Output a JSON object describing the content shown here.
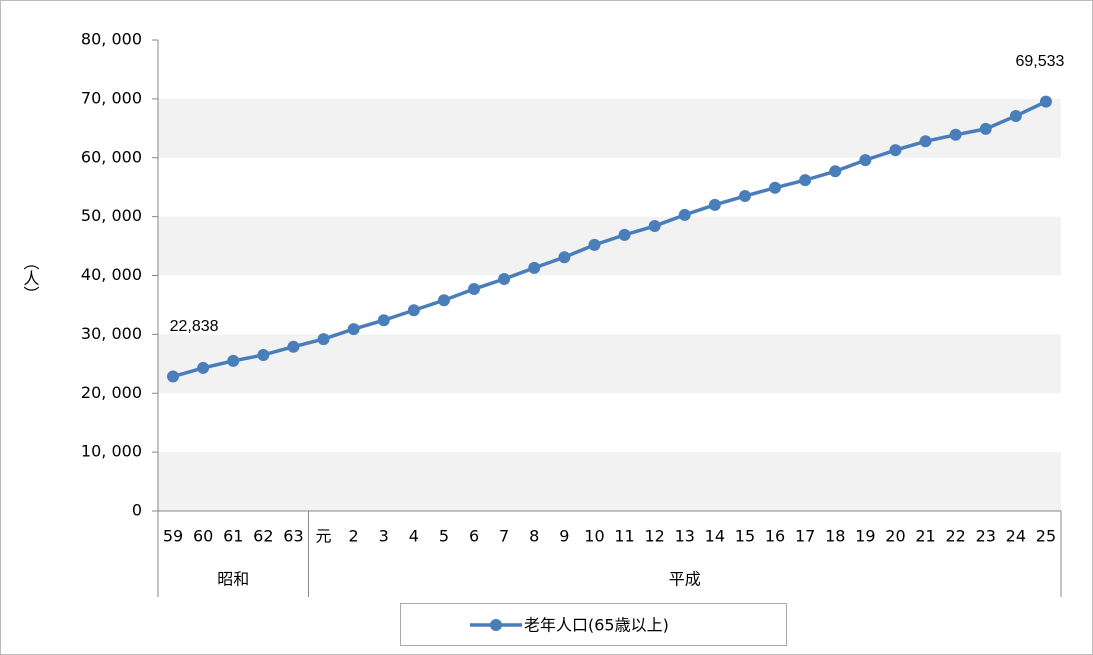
{
  "chart_data": {
    "type": "line",
    "y_label": "（人）",
    "categories": [
      "59",
      "60",
      "61",
      "62",
      "63",
      "元",
      "2",
      "3",
      "4",
      "5",
      "6",
      "7",
      "8",
      "9",
      "10",
      "11",
      "12",
      "13",
      "14",
      "15",
      "16",
      "17",
      "18",
      "19",
      "20",
      "21",
      "22",
      "23",
      "24",
      "25"
    ],
    "groups": [
      {
        "name": "昭和",
        "count": 5
      },
      {
        "name": "平成",
        "count": 25
      }
    ],
    "series": [
      {
        "name": "老年人口(65歳以上)",
        "color": "#4a7ebb",
        "values": [
          22838,
          24300,
          25500,
          26500,
          27900,
          29200,
          30900,
          32400,
          34100,
          35800,
          37700,
          39400,
          41300,
          43100,
          45200,
          46900,
          48400,
          50300,
          52000,
          53500,
          54900,
          56200,
          57700,
          59600,
          61300,
          62800,
          63900,
          64900,
          67100,
          69533
        ],
        "value_labels": [
          "22,838",
          null,
          null,
          null,
          null,
          null,
          null,
          null,
          null,
          null,
          null,
          null,
          null,
          null,
          null,
          null,
          null,
          null,
          null,
          null,
          null,
          null,
          null,
          null,
          null,
          null,
          null,
          null,
          null,
          "69,533"
        ]
      }
    ],
    "ylim": [
      0,
      80000
    ],
    "yticks": [
      0,
      {
        "value": 10000,
        "label": "10, 000"
      },
      {
        "value": 20000,
        "label": "20, 000"
      },
      {
        "value": 30000,
        "label": "30, 000"
      },
      {
        "value": 40000,
        "label": "40, 000"
      },
      {
        "value": 50000,
        "label": "50, 000"
      },
      {
        "value": 60000,
        "label": "60, 000"
      },
      {
        "value": 70000,
        "label": "70, 000"
      },
      {
        "value": 80000,
        "label": "80, 000"
      }
    ],
    "grid": "bands",
    "legend": "bottom"
  }
}
